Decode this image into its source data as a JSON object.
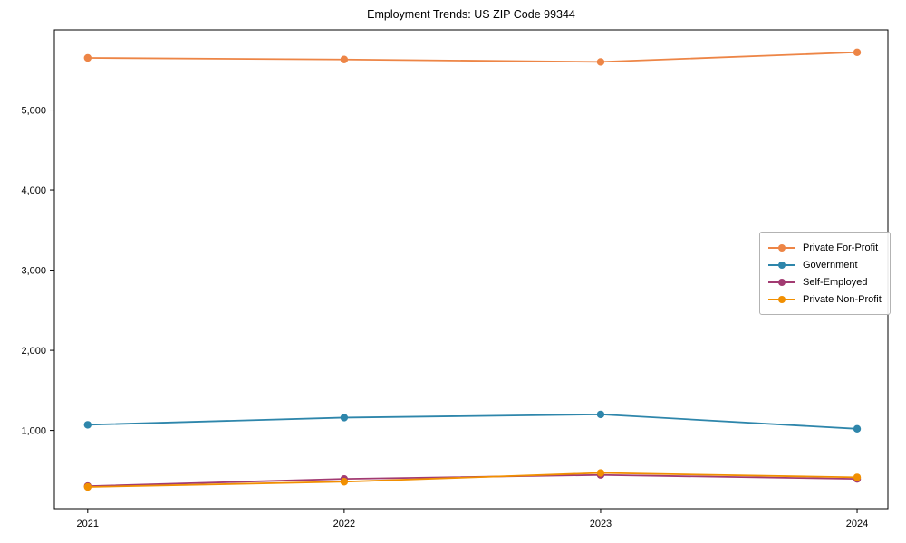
{
  "chart_data": {
    "type": "line",
    "title": "Employment Trends: US ZIP Code 99344",
    "x": [
      2021,
      2022,
      2023,
      2024
    ],
    "x_tick_labels": [
      "2021",
      "2022",
      "2023",
      "2024"
    ],
    "y_ticks": [
      1000,
      2000,
      3000,
      4000,
      5000
    ],
    "y_tick_labels": [
      "1,000",
      "2,000",
      "3,000",
      "4,000",
      "5,000"
    ],
    "xlim": [
      2020.87,
      2024.12
    ],
    "ylim": [
      24,
      6000
    ],
    "grid": false,
    "legend_position": "center right",
    "series": [
      {
        "name": "Private For-Profit",
        "color": "#ed8546",
        "marker": "circle",
        "values": [
          5650,
          5630,
          5600,
          5720
        ]
      },
      {
        "name": "Government",
        "color": "#2e86ab",
        "marker": "circle",
        "values": [
          1070,
          1160,
          1200,
          1020
        ]
      },
      {
        "name": "Self-Employed",
        "color": "#a23b72",
        "marker": "circle",
        "values": [
          305,
          395,
          445,
          395
        ]
      },
      {
        "name": "Private Non-Profit",
        "color": "#f18f01",
        "marker": "circle",
        "values": [
          295,
          360,
          470,
          415
        ]
      }
    ]
  }
}
